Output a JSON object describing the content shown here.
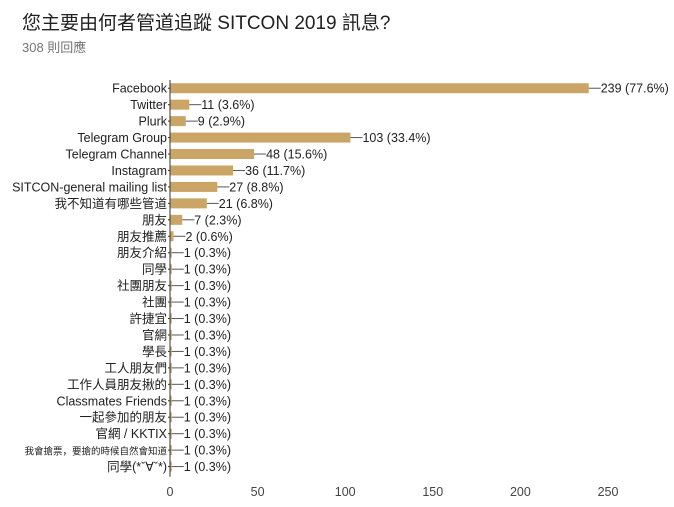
{
  "header": {
    "title": "您主要由何者管道追蹤 SITCON 2019 訊息?",
    "responses": "308 則回應"
  },
  "colors": {
    "bar": "#caa566",
    "axis": "#333333",
    "grid": "#dddddd"
  },
  "chart_data": {
    "type": "bar",
    "orientation": "horizontal",
    "title": "您主要由何者管道追蹤 SITCON 2019 訊息?",
    "categories": [
      "Facebook",
      "Twitter",
      "Plurk",
      "Telegram Group",
      "Telegram Channel",
      "Instagram",
      "SITCON-general mailing list",
      "我不知道有哪些管道",
      "朋友",
      "朋友推薦",
      "朋友介紹",
      "同學",
      "社團朋友",
      "社團",
      "許捷宜",
      "官網",
      "學長",
      "工人朋友們",
      "工作人員朋友揪的",
      "Classmates Friends",
      "一起參加的朋友",
      "官網 / KKTIX",
      "我會搶票，要搶的時候自然會知道",
      "同學(*ˇ∀ˇ*)"
    ],
    "values": [
      239,
      11,
      9,
      103,
      48,
      36,
      27,
      21,
      7,
      2,
      1,
      1,
      1,
      1,
      1,
      1,
      1,
      1,
      1,
      1,
      1,
      1,
      1,
      1
    ],
    "value_labels": [
      "239 (77.6%)",
      "11 (3.6%)",
      "9 (2.9%)",
      "103 (33.4%)",
      "48 (15.6%)",
      "36 (11.7%)",
      "27 (8.8%)",
      "21 (6.8%)",
      "7 (2.3%)",
      "2 (0.6%)",
      "1 (0.3%)",
      "1 (0.3%)",
      "1 (0.3%)",
      "1 (0.3%)",
      "1 (0.3%)",
      "1 (0.3%)",
      "1 (0.3%)",
      "1 (0.3%)",
      "1 (0.3%)",
      "1 (0.3%)",
      "1 (0.3%)",
      "1 (0.3%)",
      "1 (0.3%)",
      "1 (0.3%)"
    ],
    "xlim": [
      0,
      250
    ],
    "xticks": [
      "0",
      "50",
      "100",
      "150",
      "200",
      "250"
    ],
    "grid": false,
    "legend": "none"
  }
}
